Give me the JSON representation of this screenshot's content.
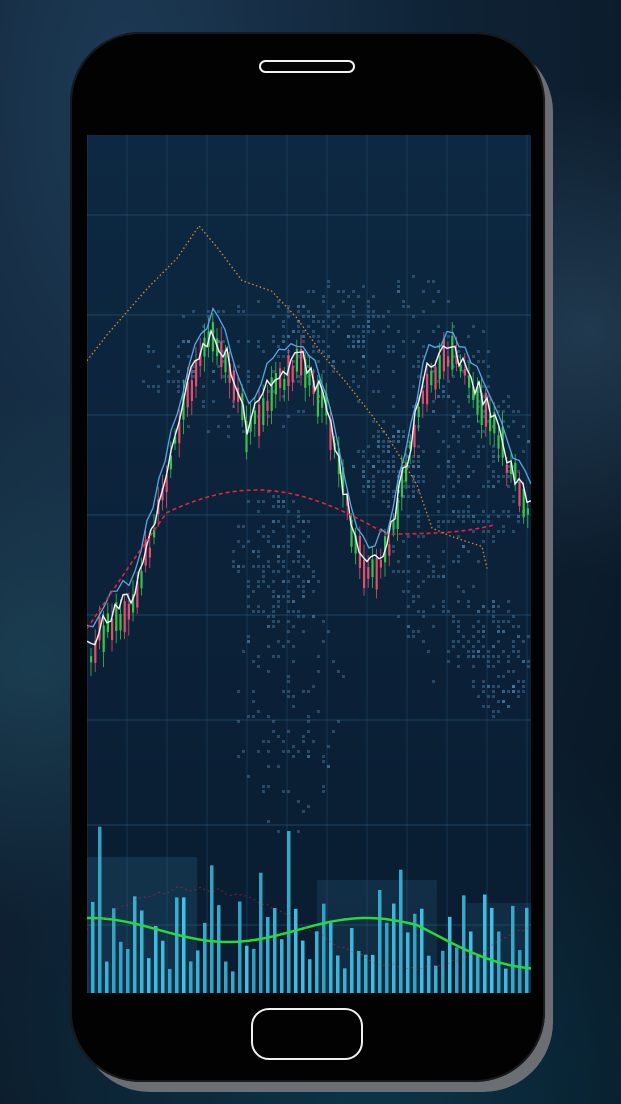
{
  "device": {
    "type": "smartphone-mockup",
    "body_color": "#020202",
    "frame_shadow_color": "#6b6f73"
  },
  "screen": {
    "content": "stock-market-trading-chart-wallpaper",
    "background_color": "#0a1f36",
    "grid_color": "#2f5f86",
    "colors": {
      "bullish_candle": "#39c24a",
      "bearish_candle": "#e0506a",
      "white_line": "#f2f5f7",
      "blue_line": "#58a8e0",
      "red_dashed_line": "#e3243c",
      "orange_dotted_line": "#d9892a",
      "volume_bars": "#3fc4e6",
      "green_wave": "#27d93a"
    }
  },
  "icons": [
    "speaker-grille-icon",
    "home-button-icon",
    "world-map-icon"
  ]
}
